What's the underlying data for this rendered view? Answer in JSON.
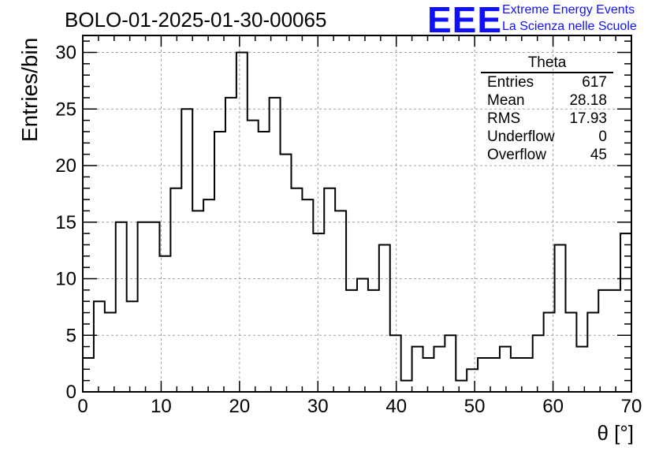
{
  "header": {
    "title": "BOLO-01-2025-01-30-00065",
    "logo_text": "EEE",
    "logo_line1": "Extreme Energy Events",
    "logo_line2": "La Scienza nelle Scuole",
    "logo_color": "#1010ff"
  },
  "stats_box": {
    "title": "Theta",
    "rows": [
      {
        "label": "Entries",
        "value": "617"
      },
      {
        "label": "Mean",
        "value": "28.18"
      },
      {
        "label": "RMS",
        "value": "17.93"
      },
      {
        "label": "Underflow",
        "value": "0"
      },
      {
        "label": "Overflow",
        "value": "45"
      }
    ]
  },
  "chart_data": {
    "type": "histogram",
    "xlabel": "θ [°]",
    "ylabel": "Entries/bin",
    "xlim": [
      0,
      70
    ],
    "ylim": [
      0,
      31.5
    ],
    "bin_width": 1.4,
    "x_ticks": [
      0,
      10,
      20,
      30,
      40,
      50,
      60,
      70
    ],
    "y_ticks": [
      0,
      5,
      10,
      15,
      20,
      25,
      30
    ],
    "grid": true,
    "values": [
      3,
      8,
      7,
      15,
      8,
      15,
      15,
      12,
      18,
      25,
      16,
      17,
      23,
      26,
      30,
      24,
      23,
      26,
      21,
      18,
      17,
      14,
      18,
      16,
      9,
      10,
      9,
      13,
      5,
      1,
      4,
      3,
      4,
      5,
      1,
      2,
      3,
      3,
      4,
      3,
      3,
      5,
      7,
      13,
      7,
      4,
      7,
      9,
      9,
      14
    ]
  }
}
